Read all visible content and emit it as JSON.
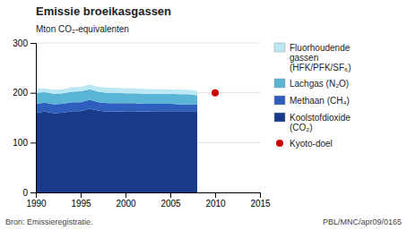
{
  "chart_data": {
    "type": "area",
    "stacked": true,
    "title": "Emissie broeikasgassen",
    "ylabel": "Mton CO₂-equivalenten",
    "annotations": [
      "Bron: Emissieregistratie.",
      "PBL/MNC/apr09/0165"
    ],
    "x": [
      1990,
      1991,
      1992,
      1993,
      1994,
      1995,
      1996,
      1997,
      1998,
      1999,
      2000,
      2001,
      2002,
      2003,
      2004,
      2005,
      2006,
      2007,
      2008
    ],
    "xlim": [
      1990,
      2015
    ],
    "xticks": [
      1990,
      1995,
      2000,
      2005,
      2010,
      2015
    ],
    "ylim": [
      0,
      300
    ],
    "yticks": [
      0,
      100,
      200,
      300
    ],
    "grid": true,
    "series": [
      {
        "name": "Koolstofdioxide\n(CO₂)",
        "color": "#1a3a8a",
        "values": [
          160,
          162,
          159,
          160,
          163,
          163,
          168,
          164,
          162,
          162,
          163,
          163,
          162,
          163,
          163,
          163,
          163,
          163,
          163
        ]
      },
      {
        "name": "Methaan (CH₄)",
        "color": "#2e5fbe",
        "values": [
          18,
          18,
          18,
          18,
          18,
          18,
          18,
          17,
          17,
          17,
          16,
          16,
          16,
          15,
          15,
          15,
          14,
          14,
          13
        ]
      },
      {
        "name": "Lachgas (N₂O)",
        "color": "#5ab4d6",
        "values": [
          22,
          21,
          21,
          21,
          21,
          22,
          21,
          21,
          21,
          21,
          20,
          20,
          20,
          20,
          20,
          20,
          20,
          20,
          19
        ]
      },
      {
        "name": "Fluorhoudende\ngassen\n(HFK/PFK/SF₆)",
        "color": "#bce8f4",
        "values": [
          8,
          8,
          8,
          8,
          9,
          9,
          10,
          10,
          10,
          10,
          10,
          10,
          10,
          9,
          9,
          9,
          9,
          9,
          9
        ]
      },
      {
        "name": "Kyoto-doel",
        "type": "scatter",
        "marker": "circle",
        "color": "#cc0000",
        "x": [
          2010
        ],
        "values": [
          200
        ]
      }
    ]
  }
}
